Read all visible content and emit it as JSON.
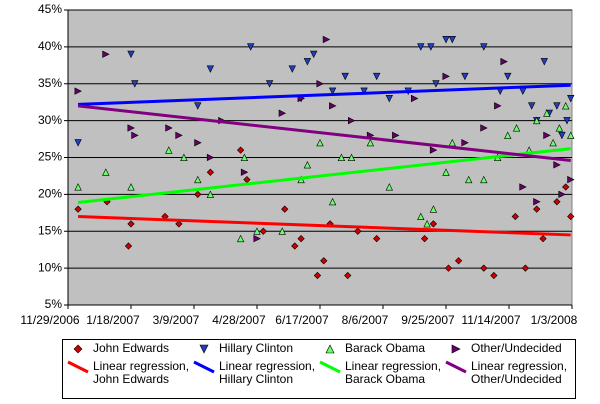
{
  "chart_data": {
    "type": "scatter",
    "xlim": [
      "2006-11-29",
      "2008-01-03"
    ],
    "xticks": [
      {
        "value": "2006-11-29",
        "label": "11/29/2006"
      },
      {
        "value": "2007-01-18",
        "label": "1/18/2007"
      },
      {
        "value": "2007-03-09",
        "label": "3/9/2007"
      },
      {
        "value": "2007-04-28",
        "label": "4/28/2007"
      },
      {
        "value": "2007-06-17",
        "label": "6/17/2007"
      },
      {
        "value": "2007-08-06",
        "label": "8/6/2007"
      },
      {
        "value": "2007-09-25",
        "label": "9/25/2007"
      },
      {
        "value": "2007-11-14",
        "label": "11/14/2007"
      },
      {
        "value": "2008-01-03",
        "label": "1/3/2008"
      }
    ],
    "ylim": [
      5,
      45
    ],
    "yticks": [
      {
        "value": 5,
        "label": "5%"
      },
      {
        "value": 10,
        "label": "10%"
      },
      {
        "value": 15,
        "label": "15%"
      },
      {
        "value": 20,
        "label": "20%"
      },
      {
        "value": 25,
        "label": "25%"
      },
      {
        "value": 30,
        "label": "30%"
      },
      {
        "value": 35,
        "label": "35%"
      },
      {
        "value": 40,
        "label": "40%"
      },
      {
        "value": 45,
        "label": "45%"
      }
    ],
    "grid": true,
    "series": [
      {
        "name": "John Edwards",
        "color": "#cc0000",
        "marker": "diamond",
        "x": [
          "2006-12-07",
          "2006-12-30",
          "2007-01-16",
          "2007-01-18",
          "2007-02-14",
          "2007-02-25",
          "2007-03-12",
          "2007-03-22",
          "2007-04-15",
          "2007-04-20",
          "2007-05-03",
          "2007-05-20",
          "2007-05-28",
          "2007-06-02",
          "2007-06-15",
          "2007-06-20",
          "2007-06-25",
          "2007-07-09",
          "2007-07-17",
          "2007-08-01",
          "2007-09-08",
          "2007-09-15",
          "2007-09-27",
          "2007-10-05",
          "2007-10-25",
          "2007-11-02",
          "2007-11-19",
          "2007-11-27",
          "2007-12-06",
          "2007-12-11",
          "2007-12-22",
          "2007-12-29",
          "2008-01-02"
        ],
        "values": [
          18,
          19,
          13,
          16,
          17,
          16,
          20,
          23,
          26,
          22,
          15,
          18,
          13,
          14,
          9,
          11,
          16,
          9,
          15,
          14,
          14,
          16,
          10,
          11,
          10,
          9,
          17,
          10,
          18,
          14,
          19,
          21,
          17
        ]
      },
      {
        "name": "Hillary Clinton",
        "color": "#1f3fc0",
        "marker": "triangle-down",
        "x": [
          "2006-12-07",
          "2007-01-18",
          "2007-01-21",
          "2007-03-12",
          "2007-03-22",
          "2007-04-23",
          "2007-05-08",
          "2007-05-26",
          "2007-06-02",
          "2007-06-07",
          "2007-06-12",
          "2007-06-27",
          "2007-07-07",
          "2007-07-22",
          "2007-08-01",
          "2007-08-11",
          "2007-08-26",
          "2007-09-05",
          "2007-09-13",
          "2007-09-17",
          "2007-09-25",
          "2007-09-30",
          "2007-10-10",
          "2007-10-25",
          "2007-11-07",
          "2007-11-13",
          "2007-11-25",
          "2007-12-02",
          "2007-12-06",
          "2007-12-12",
          "2007-12-16",
          "2007-12-22",
          "2007-12-26",
          "2007-12-30",
          "2008-01-02"
        ],
        "values": [
          27,
          39,
          35,
          32,
          37,
          40,
          35,
          37,
          33,
          38,
          39,
          34,
          36,
          34,
          36,
          33,
          34,
          40,
          40,
          35,
          41,
          41,
          36,
          40,
          34,
          36,
          34,
          32,
          30,
          38,
          31,
          32,
          28,
          30,
          33
        ]
      },
      {
        "name": "Barack Obama",
        "color": "#66ff66",
        "marker": "triangle-up",
        "x": [
          "2006-12-07",
          "2006-12-29",
          "2007-01-18",
          "2007-02-17",
          "2007-03-01",
          "2007-03-12",
          "2007-03-22",
          "2007-04-15",
          "2007-04-18",
          "2007-04-28",
          "2007-05-18",
          "2007-06-02",
          "2007-06-07",
          "2007-06-17",
          "2007-06-27",
          "2007-07-04",
          "2007-07-12",
          "2007-07-27",
          "2007-08-11",
          "2007-09-05",
          "2007-09-10",
          "2007-09-15",
          "2007-09-25",
          "2007-09-30",
          "2007-10-13",
          "2007-10-25",
          "2007-11-05",
          "2007-11-13",
          "2007-11-20",
          "2007-11-30",
          "2007-12-06",
          "2007-12-14",
          "2007-12-19",
          "2007-12-24",
          "2007-12-29",
          "2008-01-02"
        ],
        "values": [
          21,
          23,
          21,
          26,
          25,
          22,
          20,
          14,
          25,
          15,
          15,
          22,
          24,
          27,
          19,
          25,
          25,
          27,
          21,
          17,
          16,
          18,
          23,
          27,
          22,
          22,
          25,
          28,
          29,
          26,
          30,
          31,
          27,
          29,
          32,
          28
        ]
      },
      {
        "name": "Other/Undecided",
        "color": "#660066",
        "marker": "triangle-right",
        "x": [
          "2006-12-07",
          "2006-12-29",
          "2007-01-18",
          "2007-01-21",
          "2007-02-17",
          "2007-02-25",
          "2007-03-12",
          "2007-03-22",
          "2007-03-31",
          "2007-04-18",
          "2007-04-28",
          "2007-05-18",
          "2007-06-02",
          "2007-06-17",
          "2007-06-22",
          "2007-06-27",
          "2007-07-12",
          "2007-07-27",
          "2007-08-16",
          "2007-08-31",
          "2007-09-15",
          "2007-09-25",
          "2007-10-10",
          "2007-10-25",
          "2007-11-05",
          "2007-11-10",
          "2007-11-25",
          "2007-12-06",
          "2007-12-14",
          "2007-12-22",
          "2007-12-26",
          "2008-01-02"
        ],
        "values": [
          34,
          39,
          29,
          28,
          29,
          28,
          27,
          25,
          30,
          23,
          14,
          31,
          33,
          35,
          41,
          32,
          30,
          28,
          28,
          33,
          26,
          36,
          27,
          29,
          32,
          38,
          21,
          19,
          28,
          24,
          20,
          22
        ]
      }
    ],
    "trendlines": [
      {
        "name": "Linear regression, John Edwards",
        "color": "#ff0000",
        "x": [
          "2006-12-07",
          "2008-01-02"
        ],
        "values": [
          17,
          14.5
        ]
      },
      {
        "name": "Linear regression, Hillary Clinton",
        "color": "#0000ff",
        "x": [
          "2006-12-07",
          "2008-01-02"
        ],
        "values": [
          32.2,
          34.8
        ]
      },
      {
        "name": "Linear regression, Barack Obama",
        "color": "#00ff00",
        "x": [
          "2006-12-07",
          "2008-01-02"
        ],
        "values": [
          18.9,
          26.2
        ]
      },
      {
        "name": "Linear regression, Other/Undecided",
        "color": "#800080",
        "x": [
          "2006-12-07",
          "2008-01-02"
        ],
        "values": [
          32,
          24.6
        ]
      }
    ]
  }
}
